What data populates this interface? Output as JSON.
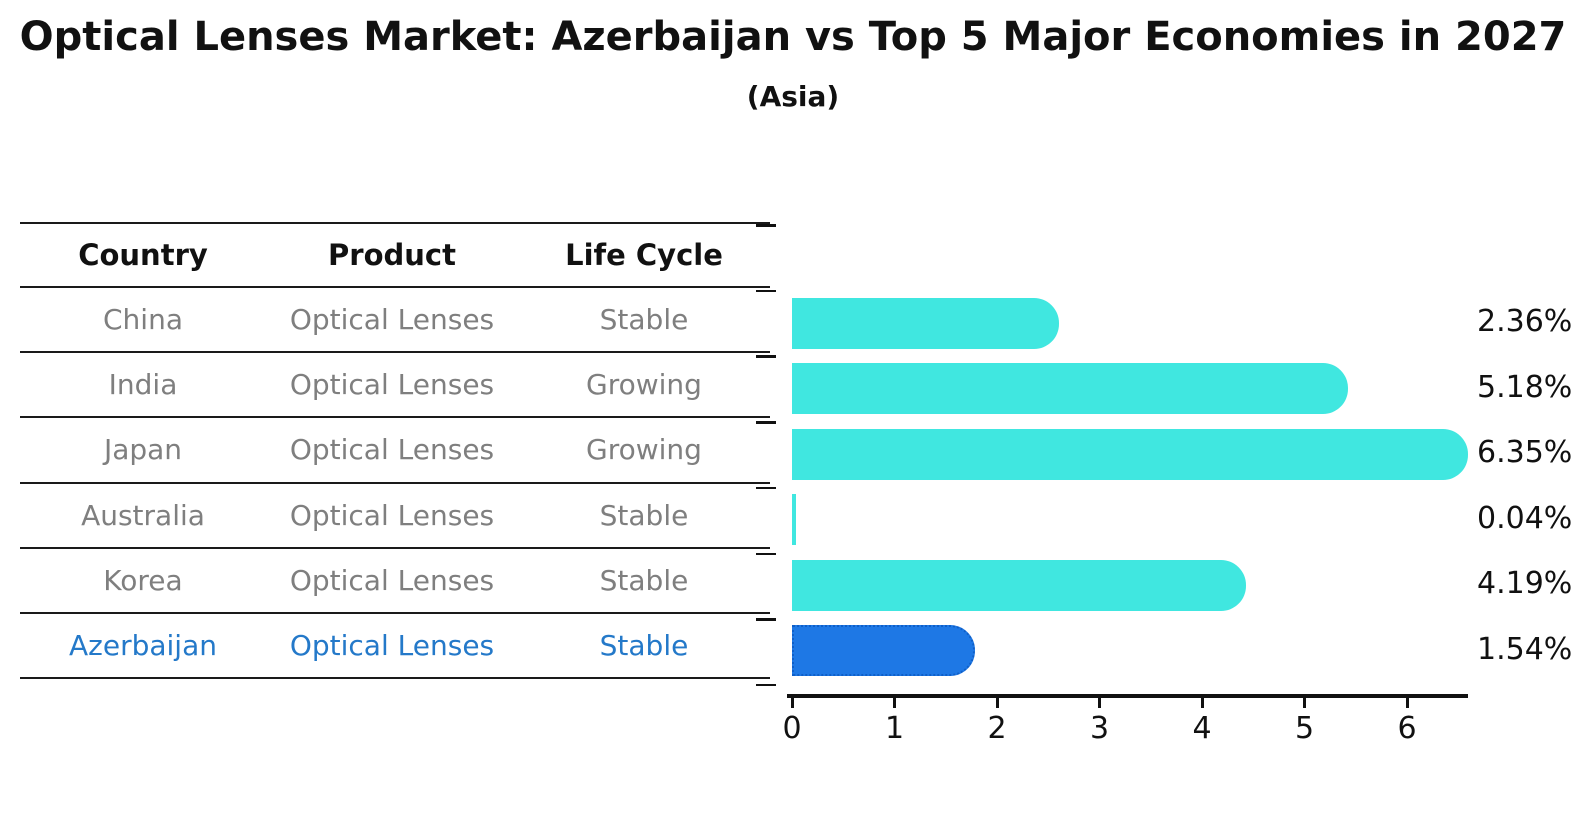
{
  "figure": {
    "title": "Optical Lenses Market: Azerbaijan vs Top 5 Major Economies in 2027",
    "subtitle": "(Asia)"
  },
  "table": {
    "headers": [
      "Country",
      "Product",
      "Life Cycle"
    ],
    "rows": [
      {
        "country": "China",
        "product": "Optical Lenses",
        "life_cycle": "Stable",
        "highlighted": false
      },
      {
        "country": "India",
        "product": "Optical Lenses",
        "life_cycle": "Growing",
        "highlighted": false
      },
      {
        "country": "Japan",
        "product": "Optical Lenses",
        "life_cycle": "Growing",
        "highlighted": false
      },
      {
        "country": "Australia",
        "product": "Optical Lenses",
        "life_cycle": "Stable",
        "highlighted": false
      },
      {
        "country": "Korea",
        "product": "Optical Lenses",
        "life_cycle": "Stable",
        "highlighted": false
      },
      {
        "country": "Azerbaijan",
        "product": "Optical Lenses",
        "life_cycle": "Stable",
        "highlighted": true
      }
    ]
  },
  "chart_data": {
    "type": "bar",
    "orientation": "horizontal",
    "categories": [
      "China",
      "India",
      "Japan",
      "Australia",
      "Korea",
      "Azerbaijan"
    ],
    "values": [
      2.36,
      5.18,
      6.35,
      0.04,
      4.19,
      1.54
    ],
    "value_labels": [
      "2.36%",
      "5.18%",
      "6.35%",
      "0.04%",
      "4.19%",
      "1.54%"
    ],
    "highlight_index": 5,
    "x_ticks": [
      "0",
      "1",
      "2",
      "3",
      "4",
      "5",
      "6"
    ],
    "xlim": [
      0,
      6.6
    ],
    "grid": false,
    "legend": null,
    "bar_color": "#40e7e0",
    "highlight_bar_color": "#1e78e5",
    "highlight_text_color": "#2479c9",
    "value_label_color": "#111111"
  }
}
